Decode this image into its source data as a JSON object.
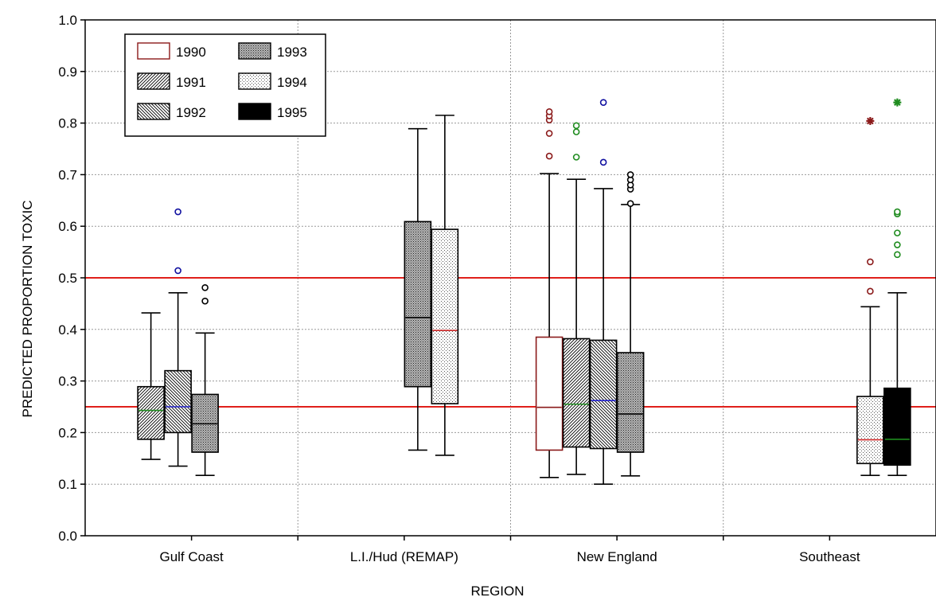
{
  "chart_data": {
    "type": "box",
    "title": "",
    "xlabel": "REGION",
    "ylabel": "PREDICTED PROPORTION TOXIC",
    "ylim": [
      0.0,
      1.0
    ],
    "yticks": [
      "0.0",
      "0.1",
      "0.2",
      "0.3",
      "0.4",
      "0.5",
      "0.6",
      "0.7",
      "0.8",
      "0.9",
      "1.0"
    ],
    "grid": true,
    "legend_position": "top-left",
    "reference_lines": [
      0.25,
      0.5
    ],
    "reference_line_color": "#e0201b",
    "categories": [
      "Gulf Coast",
      "L.I./Hud (REMAP)",
      "New England",
      "Southeast"
    ],
    "series": [
      {
        "name": "1990",
        "pattern": "empty",
        "edge_color": "#8b1a1a"
      },
      {
        "name": "1991",
        "pattern": "diag-right"
      },
      {
        "name": "1992",
        "pattern": "diag-left"
      },
      {
        "name": "1993",
        "pattern": "dense-dots"
      },
      {
        "name": "1994",
        "pattern": "sparse-dots"
      },
      {
        "name": "1995",
        "pattern": "solid-black"
      }
    ],
    "boxes": [
      {
        "category": "Gulf Coast",
        "series": "1991",
        "min": 0.148,
        "q1": 0.187,
        "median": 0.243,
        "q3": 0.289,
        "max": 0.432,
        "median_color": "#1f8c1f",
        "outliers": [],
        "outlier_color": "#000000",
        "extremes": []
      },
      {
        "category": "Gulf Coast",
        "series": "1992",
        "min": 0.135,
        "q1": 0.2,
        "median": 0.25,
        "q3": 0.32,
        "max": 0.471,
        "median_color": "#2222cc",
        "outliers": [
          0.514,
          0.628
        ],
        "outlier_color": "#1010a0",
        "extremes": []
      },
      {
        "category": "Gulf Coast",
        "series": "1993",
        "min": 0.117,
        "q1": 0.162,
        "median": 0.217,
        "q3": 0.274,
        "max": 0.393,
        "median_color": "#000000",
        "outliers": [
          0.455,
          0.481
        ],
        "outlier_color": "#000000",
        "extremes": []
      },
      {
        "category": "L.I./Hud (REMAP)",
        "series": "1993",
        "min": 0.166,
        "q1": 0.289,
        "median": 0.423,
        "q3": 0.609,
        "max": 0.789,
        "median_color": "#000000",
        "outliers": [],
        "outlier_color": "#000000",
        "extremes": []
      },
      {
        "category": "L.I./Hud (REMAP)",
        "series": "1994",
        "min": 0.156,
        "q1": 0.256,
        "median": 0.398,
        "q3": 0.594,
        "max": 0.815,
        "median_color": "#cc2222",
        "outliers": [],
        "outlier_color": "#000000",
        "extremes": []
      },
      {
        "category": "New England",
        "series": "1990",
        "min": 0.113,
        "q1": 0.166,
        "median": 0.249,
        "q3": 0.385,
        "max": 0.702,
        "median_color": "#8b1a1a",
        "outliers": [
          0.736,
          0.78,
          0.806,
          0.814,
          0.822
        ],
        "outlier_color": "#8b1a1a",
        "extremes": []
      },
      {
        "category": "New England",
        "series": "1991",
        "min": 0.119,
        "q1": 0.172,
        "median": 0.255,
        "q3": 0.382,
        "max": 0.691,
        "median_color": "#1f8c1f",
        "outliers": [
          0.734,
          0.783,
          0.795
        ],
        "outlier_color": "#1f8c1f",
        "extremes": []
      },
      {
        "category": "New England",
        "series": "1992",
        "min": 0.1,
        "q1": 0.169,
        "median": 0.262,
        "q3": 0.379,
        "max": 0.673,
        "median_color": "#2222cc",
        "outliers": [
          0.724,
          0.84
        ],
        "outlier_color": "#1010a0",
        "extremes": []
      },
      {
        "category": "New England",
        "series": "1993",
        "min": 0.116,
        "q1": 0.162,
        "median": 0.236,
        "q3": 0.355,
        "max": 0.642,
        "median_color": "#000000",
        "outliers": [
          0.644,
          0.672,
          0.68,
          0.69,
          0.7
        ],
        "outlier_color": "#000000",
        "extremes": []
      },
      {
        "category": "Southeast",
        "series": "1994",
        "min": 0.117,
        "q1": 0.14,
        "median": 0.186,
        "q3": 0.27,
        "max": 0.444,
        "median_color": "#cc2222",
        "outliers": [
          0.474,
          0.531
        ],
        "outlier_color": "#8b1a1a",
        "extremes": [
          0.804
        ],
        "extreme_color": "#8b1a1a"
      },
      {
        "category": "Southeast",
        "series": "1995",
        "min": 0.117,
        "q1": 0.137,
        "median": 0.187,
        "q3": 0.286,
        "max": 0.471,
        "median_color": "#1f8c1f",
        "outliers": [
          0.545,
          0.564,
          0.587,
          0.624,
          0.628
        ],
        "outlier_color": "#1f8c1f",
        "extremes": [
          0.84
        ],
        "extreme_color": "#1f8c1f"
      }
    ]
  }
}
